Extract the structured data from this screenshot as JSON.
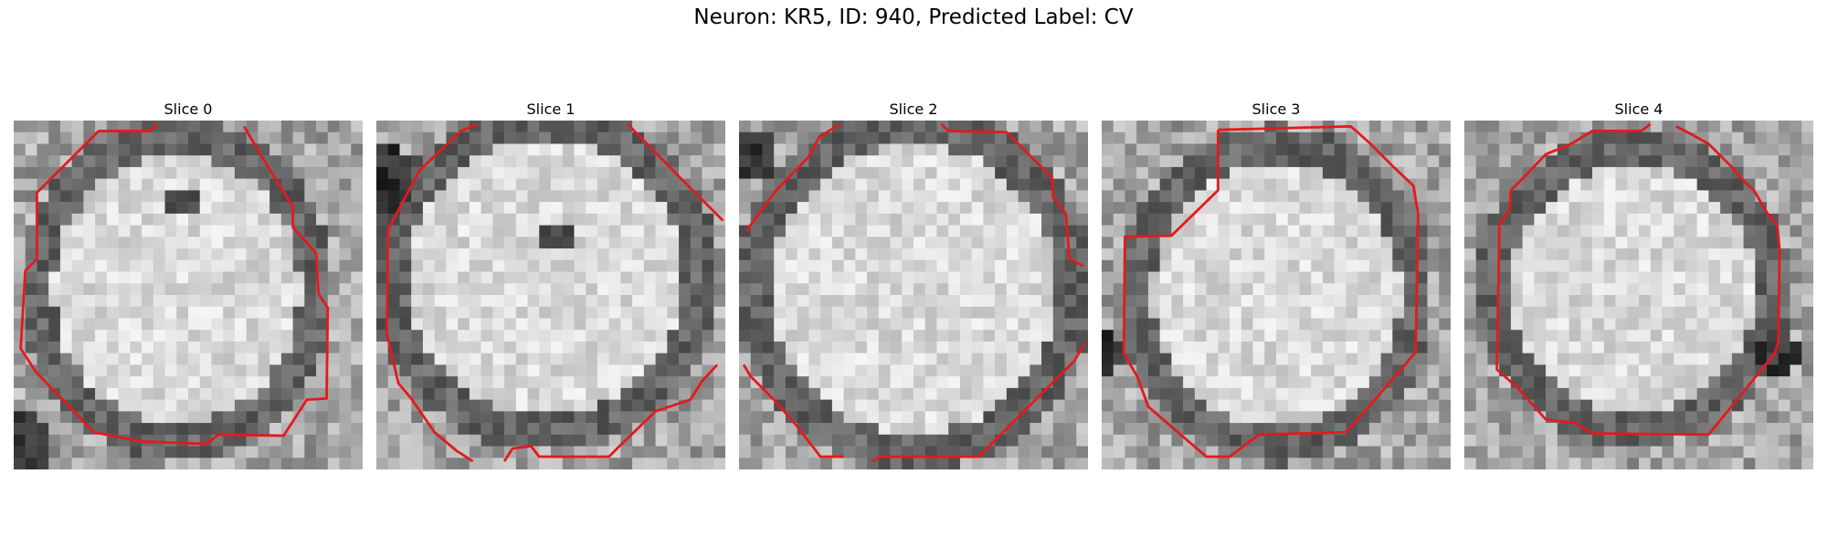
{
  "figure": {
    "title": "Neuron: KR5, ID: 940, Predicted Label: CV"
  },
  "panels": [
    {
      "title": "Slice 0"
    },
    {
      "title": "Slice 1"
    },
    {
      "title": "Slice 2"
    },
    {
      "title": "Slice 3"
    },
    {
      "title": "Slice 4"
    }
  ],
  "colors": {
    "contour": "#e31a1c",
    "background": "#ffffff"
  }
}
